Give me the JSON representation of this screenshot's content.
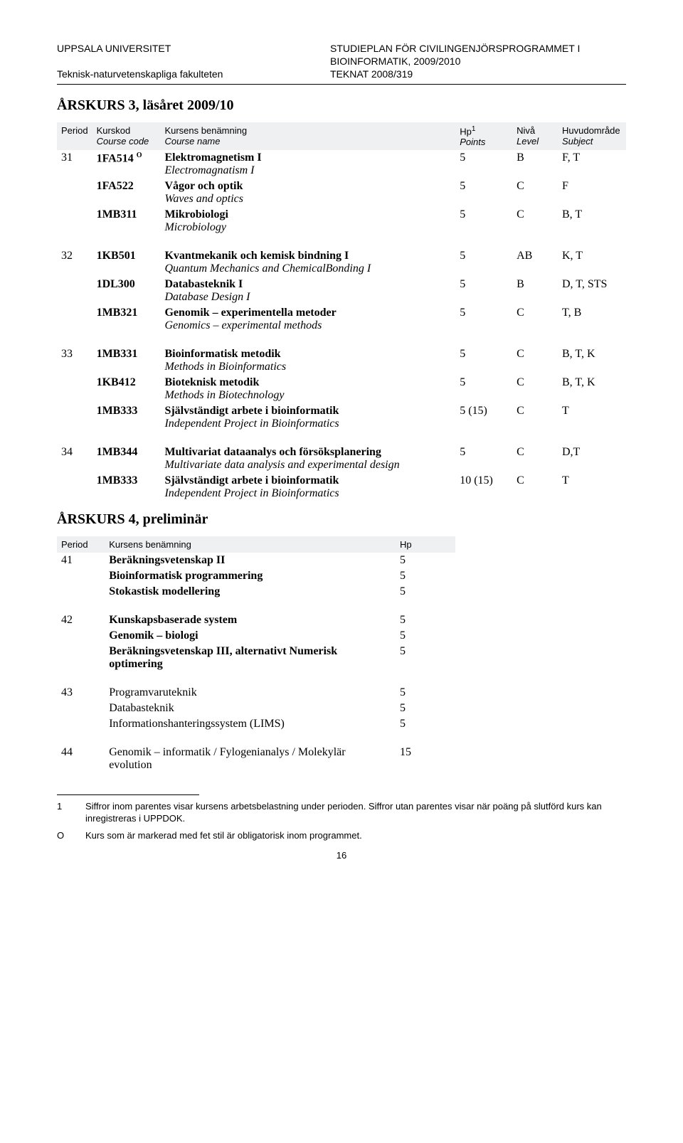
{
  "header": {
    "uni": "UPPSALA UNIVERSITET",
    "prog1": "STUDIEPLAN FÖR CIVILINGENJÖRSPROGRAMMET I",
    "prog2": "BIOINFORMATIK, 2009/2010",
    "faculty": "Teknisk-naturvetenskapliga fakulteten",
    "docno": "TEKNAT 2008/319"
  },
  "section3_title": "ÅRSKURS 3, läsåret 2009/10",
  "thead": {
    "period": "Period",
    "code1": "Kurskod",
    "code2": "Course code",
    "name1": "Kursens benämning",
    "name2": "Course name",
    "hp": "Hp",
    "hp_sup": "1",
    "hp2": "Points",
    "level1": "Nivå",
    "level2": "Level",
    "subj1": "Huvudområde",
    "subj2": "Subject"
  },
  "p31": {
    "period": "31",
    "r1": {
      "code": "1FA514",
      "o": "O",
      "name": "Elektromagnetism I",
      "it": "Electromagnatism I",
      "hp": "5",
      "lvl": "B",
      "subj": "F, T"
    },
    "r2": {
      "code": "1FA522",
      "name": "Vågor och optik",
      "it": "Waves and optics",
      "hp": "5",
      "lvl": "C",
      "subj": "F"
    },
    "r3": {
      "code": "1MB311",
      "name": "Mikrobiologi",
      "it": "Microbiology",
      "hp": "5",
      "lvl": "C",
      "subj": "B, T"
    }
  },
  "p32": {
    "period": "32",
    "r1": {
      "code": "1KB501",
      "name": "Kvantmekanik och kemisk bindning I",
      "it": "Quantum Mechanics and ChemicalBonding I",
      "hp": "5",
      "lvl": "AB",
      "subj": "K, T"
    },
    "r2": {
      "code": "1DL300",
      "name": "Databasteknik I",
      "it": "Database Design I",
      "hp": "5",
      "lvl": "B",
      "subj": "D, T, STS"
    },
    "r3": {
      "code": "1MB321",
      "name": "Genomik – experimentella metoder",
      "it": "Genomics – experimental methods",
      "hp": "5",
      "lvl": "C",
      "subj": "T, B"
    }
  },
  "p33": {
    "period": "33",
    "r1": {
      "code": "1MB331",
      "name": "Bioinformatisk metodik",
      "it": "Methods in Bioinformatics",
      "hp": "5",
      "lvl": "C",
      "subj": "B, T, K"
    },
    "r2": {
      "code": "1KB412",
      "name": "Bioteknisk metodik",
      "it": "Methods in Biotechnology",
      "hp": "5",
      "lvl": "C",
      "subj": "B, T, K"
    },
    "r3": {
      "code": "1MB333",
      "name": "Självständigt arbete i bioinformatik",
      "it": "Independent Project in Bioinformatics",
      "hp": "5 (15)",
      "lvl": "C",
      "subj": "T"
    }
  },
  "p34": {
    "period": "34",
    "r1": {
      "code": "1MB344",
      "name": "Multivariat dataanalys och försöksplanering",
      "it": "Multivariate data analysis and experimental design",
      "hp": "5",
      "lvl": "C",
      "subj": "D,T"
    },
    "r2": {
      "code": "1MB333",
      "name": "Självständigt arbete i bioinformatik",
      "it": "Independent Project in Bioinformatics",
      "hp": "10 (15)",
      "lvl": "C",
      "subj": "T"
    }
  },
  "section4_title": "ÅRSKURS 4, preliminär",
  "pthead": {
    "period": "Period",
    "name": "Kursens benämning",
    "hp": "Hp"
  },
  "p41": {
    "period": "41",
    "rows": [
      {
        "name": "Beräkningsvetenskap II",
        "hp": "5"
      },
      {
        "name": "Bioinformatisk programmering",
        "hp": "5"
      },
      {
        "name": "Stokastisk modellering",
        "hp": "5"
      }
    ]
  },
  "p42": {
    "period": "42",
    "rows": [
      {
        "name": "Kunskapsbaserade system",
        "hp": "5"
      },
      {
        "name": "Genomik – biologi",
        "hp": "5"
      },
      {
        "name": "Beräkningsvetenskap III, alternativt Numerisk optimering",
        "hp": "5"
      }
    ]
  },
  "p43": {
    "period": "43",
    "rows": [
      {
        "name": "Programvaruteknik",
        "hp": "5"
      },
      {
        "name": "Databasteknik",
        "hp": "5"
      },
      {
        "name": "Informationshanteringssystem (LIMS)",
        "hp": "5"
      }
    ]
  },
  "p44": {
    "period": "44",
    "rows": [
      {
        "name": "Genomik – informatik / Fylogenianalys / Molekylär evolution",
        "hp": "15"
      }
    ]
  },
  "footnotes": {
    "f1_key": "1",
    "f1": "Siffror inom parentes visar kursens arbetsbelastning under perioden. Siffror utan parentes visar när poäng på slutförd kurs kan inregistreras i UPPDOK.",
    "fo_key": "O",
    "fo": "Kurs som är markerad med fet stil är obligatorisk inom programmet."
  },
  "pagenum": "16"
}
